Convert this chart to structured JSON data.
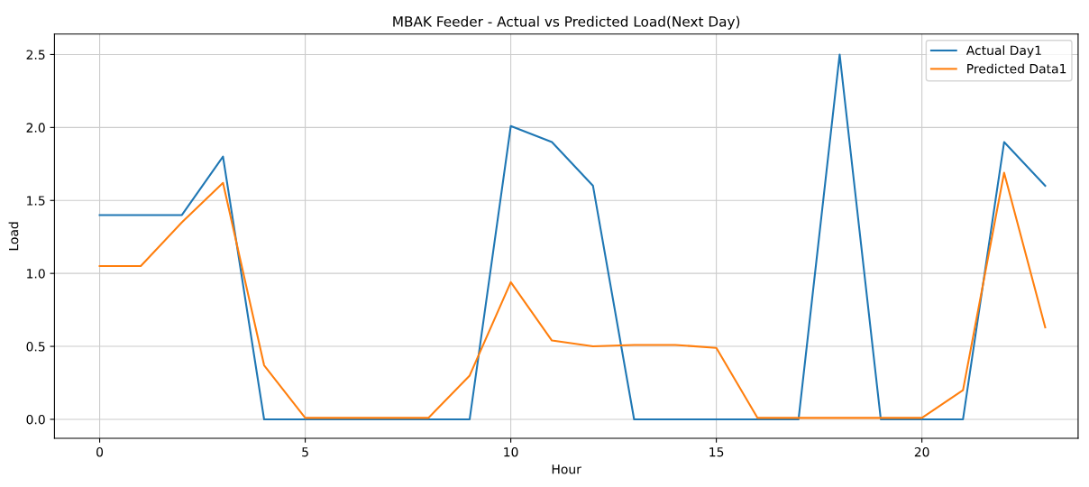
{
  "chart_data": {
    "type": "line",
    "title": "MBAK Feeder - Actual vs Predicted Load(Next Day)",
    "xlabel": "Hour",
    "ylabel": "Load",
    "x": [
      0,
      1,
      2,
      3,
      4,
      5,
      6,
      7,
      8,
      9,
      10,
      11,
      12,
      13,
      14,
      15,
      16,
      17,
      18,
      19,
      20,
      21,
      22,
      23
    ],
    "series": [
      {
        "name": "Actual Day1",
        "color": "#1f77b4",
        "values": [
          1.4,
          1.4,
          1.4,
          1.8,
          0,
          0,
          0,
          0,
          0,
          0,
          2.01,
          1.9,
          1.6,
          0,
          0,
          0,
          0,
          0,
          2.5,
          0,
          0,
          0,
          1.9,
          1.6
        ]
      },
      {
        "name": "Predicted Data1",
        "color": "#ff7f0e",
        "values": [
          1.05,
          1.05,
          1.35,
          1.62,
          0.37,
          0.01,
          0.01,
          0.01,
          0.01,
          0.3,
          0.94,
          0.54,
          0.5,
          0.51,
          0.51,
          0.49,
          0.01,
          0.01,
          0.01,
          0.01,
          0.01,
          0.2,
          1.69,
          0.63
        ]
      }
    ],
    "xlim": [
      -1.1,
      23.8
    ],
    "ylim": [
      -0.13,
      2.64
    ],
    "xticks": [
      0,
      5,
      10,
      15,
      20
    ],
    "yticks": [
      {
        "value": 0,
        "label": "0.0"
      },
      {
        "value": 0.5,
        "label": "0.5"
      },
      {
        "value": 1,
        "label": "1.0"
      },
      {
        "value": 1.5,
        "label": "1.5"
      },
      {
        "value": 2,
        "label": "2.0"
      },
      {
        "value": 2.5,
        "label": "2.5"
      }
    ],
    "grid": true,
    "legend": "top right",
    "marker": "none",
    "line_style": "solid"
  }
}
